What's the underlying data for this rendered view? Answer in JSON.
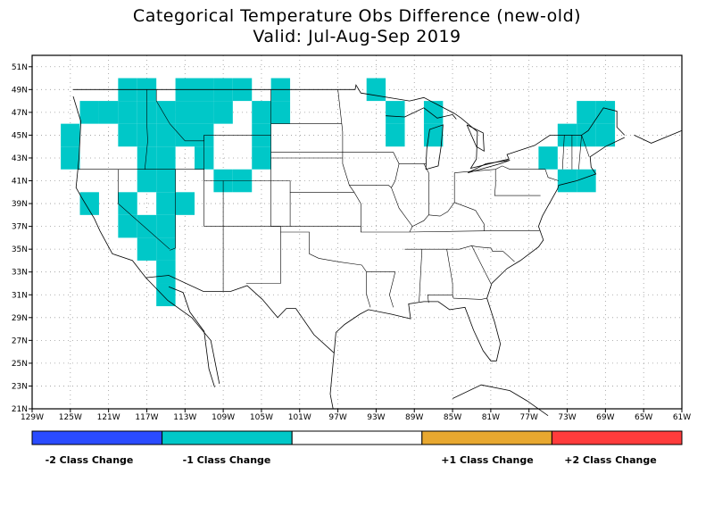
{
  "title": "Categorical Temperature Obs Difference (new-old)",
  "subtitle": "Valid: Jul-Aug-Sep 2019",
  "map": {
    "lon_range": [
      -129,
      -61
    ],
    "lat_range": [
      21,
      52
    ],
    "lat_ticks": [
      "51N",
      "49N",
      "47N",
      "45N",
      "43N",
      "41N",
      "39N",
      "37N",
      "35N",
      "33N",
      "31N",
      "29N",
      "27N",
      "25N",
      "23N",
      "21N"
    ],
    "lon_ticks": [
      "129W",
      "125W",
      "121W",
      "117W",
      "113W",
      "109W",
      "105W",
      "101W",
      "97W",
      "93W",
      "89W",
      "85W",
      "81W",
      "77W",
      "73W",
      "69W",
      "65W",
      "61W"
    ],
    "highlight_color": "#00c8c8",
    "cells_minus1": [
      [
        -119,
        49
      ],
      [
        -117,
        49
      ],
      [
        -113,
        49
      ],
      [
        -111,
        49
      ],
      [
        -109,
        49
      ],
      [
        -107,
        49
      ],
      [
        -103,
        49
      ],
      [
        -93,
        49
      ],
      [
        -123,
        47
      ],
      [
        -121,
        47
      ],
      [
        -119,
        47
      ],
      [
        -117,
        47
      ],
      [
        -115,
        47
      ],
      [
        -113,
        47
      ],
      [
        -111,
        47
      ],
      [
        -109,
        47
      ],
      [
        -105,
        47
      ],
      [
        -103,
        47
      ],
      [
        -91,
        47
      ],
      [
        -87,
        47
      ],
      [
        -71,
        47
      ],
      [
        -69,
        47
      ],
      [
        -125,
        45
      ],
      [
        -119,
        45
      ],
      [
        -117,
        45
      ],
      [
        -115,
        45
      ],
      [
        -113,
        45
      ],
      [
        -111,
        45
      ],
      [
        -105,
        45
      ],
      [
        -91,
        45
      ],
      [
        -87,
        45
      ],
      [
        -73,
        45
      ],
      [
        -71,
        45
      ],
      [
        -69,
        45
      ],
      [
        -125,
        43
      ],
      [
        -117,
        43
      ],
      [
        -115,
        43
      ],
      [
        -111,
        43
      ],
      [
        -105,
        43
      ],
      [
        -75,
        43
      ],
      [
        -117,
        41
      ],
      [
        -115,
        41
      ],
      [
        -109,
        41
      ],
      [
        -107,
        41
      ],
      [
        -73,
        41
      ],
      [
        -71,
        41
      ],
      [
        -123,
        39
      ],
      [
        -119,
        39
      ],
      [
        -115,
        39
      ],
      [
        -113,
        39
      ],
      [
        -119,
        37
      ],
      [
        -117,
        37
      ],
      [
        -115,
        37
      ],
      [
        -117,
        35
      ],
      [
        -115,
        35
      ],
      [
        -115,
        33
      ],
      [
        -115,
        31
      ]
    ]
  },
  "legend": {
    "colors": [
      "#2a4bff",
      "#00c8c8",
      "#ffffff",
      "#e8a830",
      "#ff3c3c"
    ],
    "labels": [
      "-2 Class Change",
      "-1 Class Change",
      "+1 Class Change",
      "+2 Class Change"
    ]
  }
}
